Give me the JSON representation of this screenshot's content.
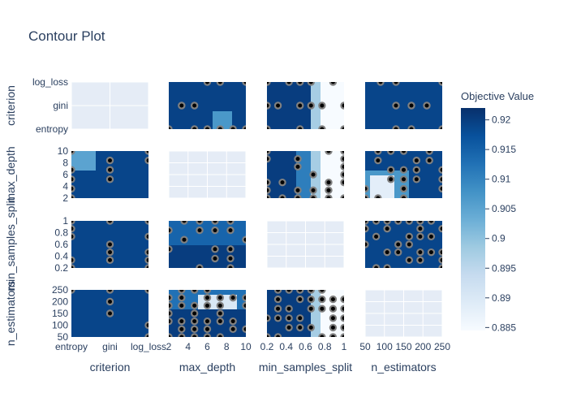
{
  "chart_data": {
    "type": "contour",
    "title": "Contour Plot",
    "params": [
      {
        "name": "criterion",
        "kind": "categorical",
        "ticks": [
          "entropy",
          "gini",
          "log_loss"
        ],
        "range": [
          0,
          2
        ]
      },
      {
        "name": "max_depth",
        "kind": "numeric",
        "ticks": [
          2,
          4,
          6,
          8,
          10
        ],
        "range": [
          2,
          10
        ]
      },
      {
        "name": "min_samples_split",
        "kind": "numeric",
        "ticks": [
          0.2,
          0.4,
          0.6,
          0.8,
          1
        ],
        "range": [
          0.1,
          1.0
        ]
      },
      {
        "name": "n_estimators",
        "kind": "numeric",
        "ticks": [
          50,
          100,
          150,
          200,
          250
        ],
        "range": [
          40,
          260
        ]
      }
    ],
    "colorbar": {
      "title": "Objective Value",
      "ticks": [
        0.885,
        0.89,
        0.895,
        0.9,
        0.905,
        0.91,
        0.915,
        0.92
      ],
      "range": [
        0.8845,
        0.922
      ],
      "colorscale": [
        "#f7fbff",
        "#deebf7",
        "#c6dbef",
        "#9ecae1",
        "#6baed6",
        "#4292c6",
        "#2171b5",
        "#08519c",
        "#08306b"
      ]
    },
    "grid": true,
    "plot_bgcolor": "#e5ecf6",
    "marker_color": "#808080"
  }
}
